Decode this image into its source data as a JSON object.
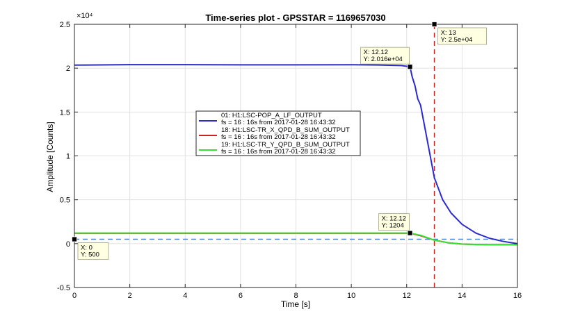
{
  "chart_data": {
    "type": "line",
    "title": "Time-series plot - GPSSTAR = 1169657030",
    "xlabel": "Time [s]",
    "ylabel": "Amplitude [Counts]",
    "xlim": [
      0,
      16
    ],
    "ylim": [
      -5000,
      25000
    ],
    "x_ticks": [
      0,
      2,
      4,
      6,
      8,
      10,
      12,
      14,
      16
    ],
    "x_tick_labels": [
      "0",
      "2",
      "4",
      "6",
      "8",
      "10",
      "12",
      "14",
      "16"
    ],
    "y_ticks": [
      -5000,
      0,
      5000,
      10000,
      15000,
      20000,
      25000
    ],
    "y_tick_labels": [
      "-0.5",
      "0",
      "0.5",
      "1",
      "1.5",
      "2",
      "2.5"
    ],
    "y_exponent": "×10⁴",
    "grid": true,
    "legend_position": "center",
    "series": [
      {
        "name": "01: H1:LSC-POP_A_LF_OUTPUT",
        "legend_sub": "fs = 16 : 16s from 2017-01-28 16:43:32",
        "color": "#2a2ad0",
        "x": [
          0,
          2,
          4,
          6,
          8,
          10,
          11,
          11.8,
          12.12,
          12.2,
          12.3,
          12.4,
          12.5,
          12.7,
          13,
          13.3,
          13.6,
          14,
          14.5,
          15,
          15.5,
          16
        ],
        "y": [
          20350,
          20400,
          20400,
          20380,
          20380,
          20390,
          20360,
          20300,
          20160,
          19000,
          18000,
          16500,
          15800,
          12500,
          7500,
          5000,
          3500,
          2200,
          1200,
          600,
          250,
          0
        ]
      },
      {
        "name": "18: H1:LSC-TR_X_QPD_B_SUM_OUTPUT",
        "legend_sub": "fs = 16 : 16s from 2017-01-28 16:43:32",
        "color": "#cc2222",
        "x": [
          0,
          2,
          4,
          6,
          8,
          10,
          12.12,
          12.5,
          13,
          13.5,
          14,
          14.5,
          15,
          15.5,
          16
        ],
        "y": [
          1180,
          1180,
          1180,
          1180,
          1180,
          1180,
          1180,
          900,
          400,
          100,
          -50,
          -100,
          -120,
          -120,
          -120
        ]
      },
      {
        "name": "19: H1:LSC-TR_Y_QPD_B_SUM_OUTPUT",
        "legend_sub": "fs = 16 : 16s from 2017-01-28 16:43:32",
        "color": "#33e033",
        "x": [
          0,
          2,
          4,
          6,
          8,
          10,
          12.12,
          12.5,
          13,
          13.5,
          14,
          14.5,
          15,
          15.5,
          16
        ],
        "y": [
          1204,
          1204,
          1204,
          1204,
          1204,
          1204,
          1204,
          950,
          400,
          100,
          -50,
          -100,
          -120,
          -120,
          -120
        ]
      }
    ],
    "reference_lines": [
      {
        "orientation": "horizontal",
        "value": 500,
        "color": "#4488dd",
        "style": "dashed"
      },
      {
        "orientation": "vertical",
        "value": 13,
        "color": "#cc2222",
        "style": "dashed"
      }
    ],
    "datatips": [
      {
        "x": 0,
        "y": 500,
        "line1": "X: 0",
        "line2": "Y: 500",
        "placement": "below-right"
      },
      {
        "x": 12.12,
        "y": 20160,
        "line1": "X: 12.12",
        "line2": "Y: 2.016e+04",
        "placement": "above-left"
      },
      {
        "x": 13,
        "y": 25000,
        "line1": "X: 13",
        "line2": "Y: 2.5e+04",
        "placement": "below-right"
      },
      {
        "x": 12.12,
        "y": 1204,
        "line1": "X: 12.12",
        "line2": "Y: 1204",
        "placement": "above-left"
      }
    ]
  }
}
